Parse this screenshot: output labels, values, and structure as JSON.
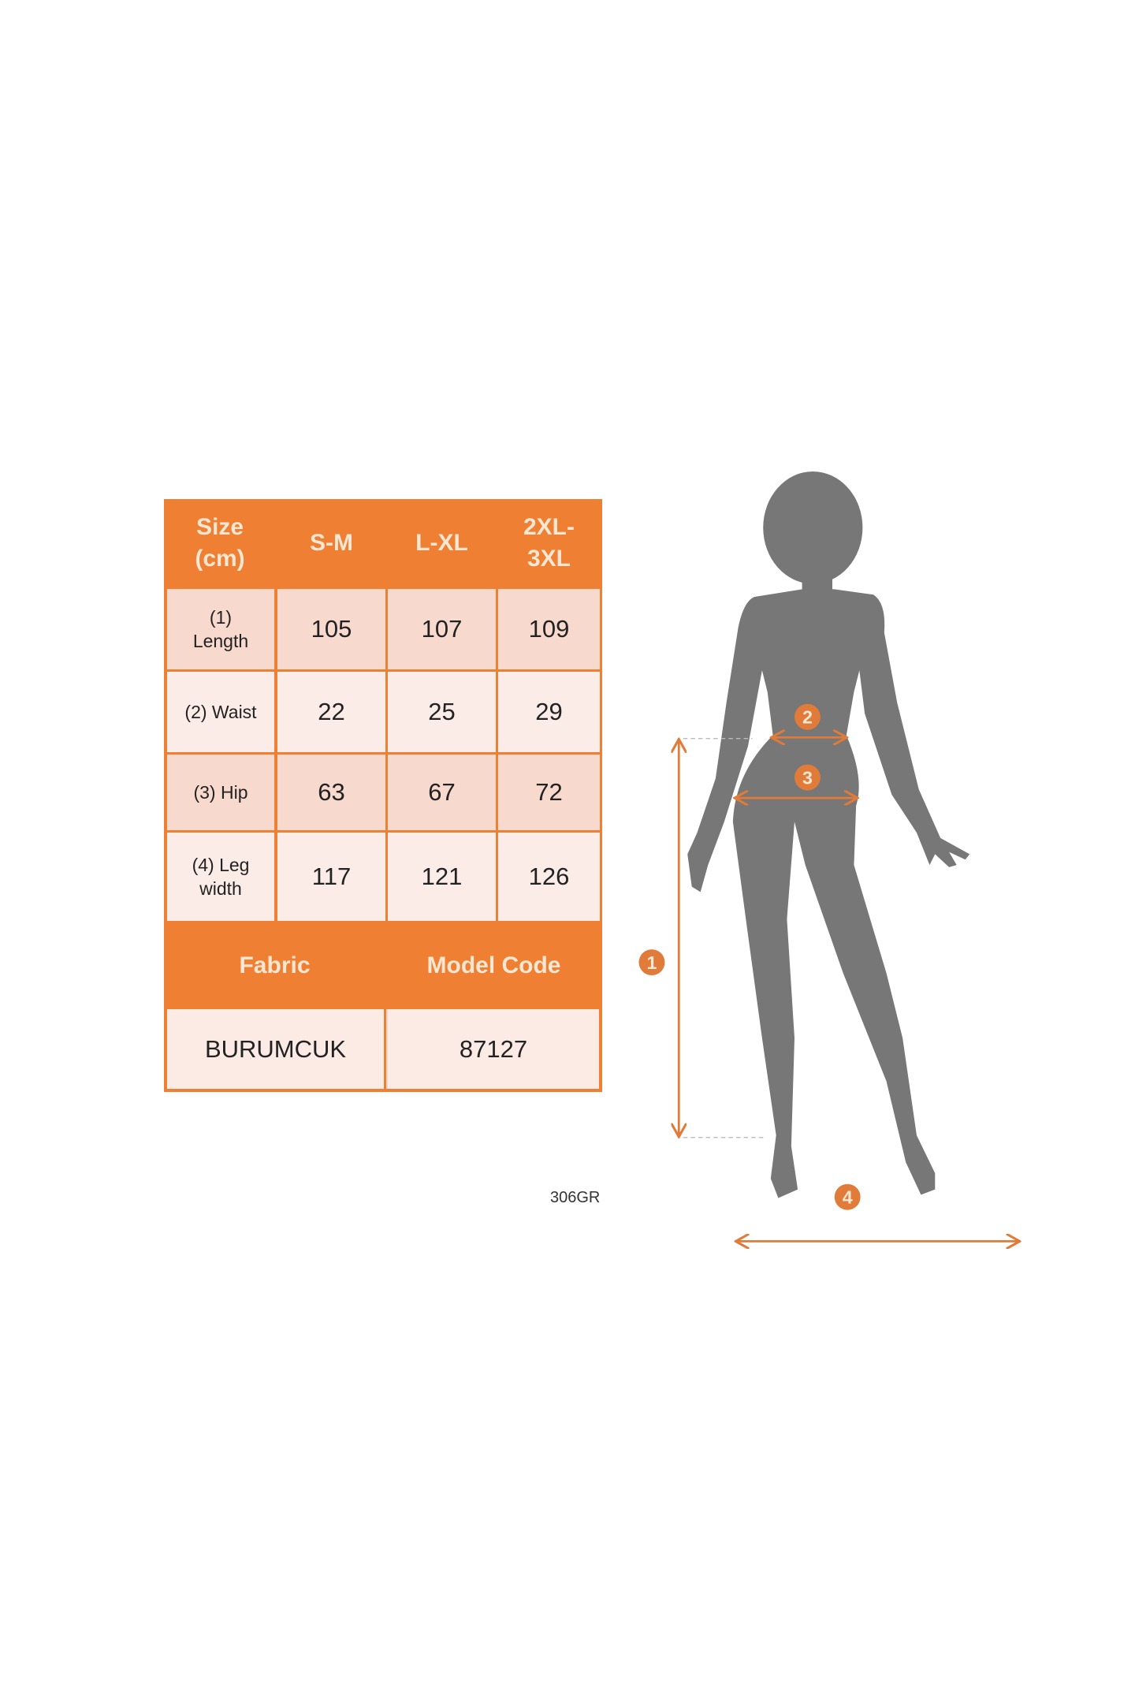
{
  "size_table": {
    "header": [
      "Size\n(cm)",
      "S-M",
      "L-XL",
      "2XL-\n3XL"
    ],
    "rows": [
      {
        "label": "(1)\nLength",
        "values": [
          "105",
          "107",
          "109"
        ]
      },
      {
        "label": "(2) Waist",
        "values": [
          "22",
          "25",
          "29"
        ]
      },
      {
        "label": "(3) Hip",
        "values": [
          "63",
          "67",
          "72"
        ]
      },
      {
        "label": "(4) Leg\nwidth",
        "values": [
          "117",
          "121",
          "126"
        ]
      }
    ],
    "info_header": [
      "Fabric",
      "Model Code"
    ],
    "info_values": [
      "BURUMCUK",
      "87127"
    ]
  },
  "figure": {
    "markers": [
      "1",
      "2",
      "3",
      "4"
    ]
  },
  "product_code": "306GR",
  "colors": {
    "accent": "#ef7f32",
    "arrow": "#e07b39",
    "silhouette": "#777777"
  }
}
